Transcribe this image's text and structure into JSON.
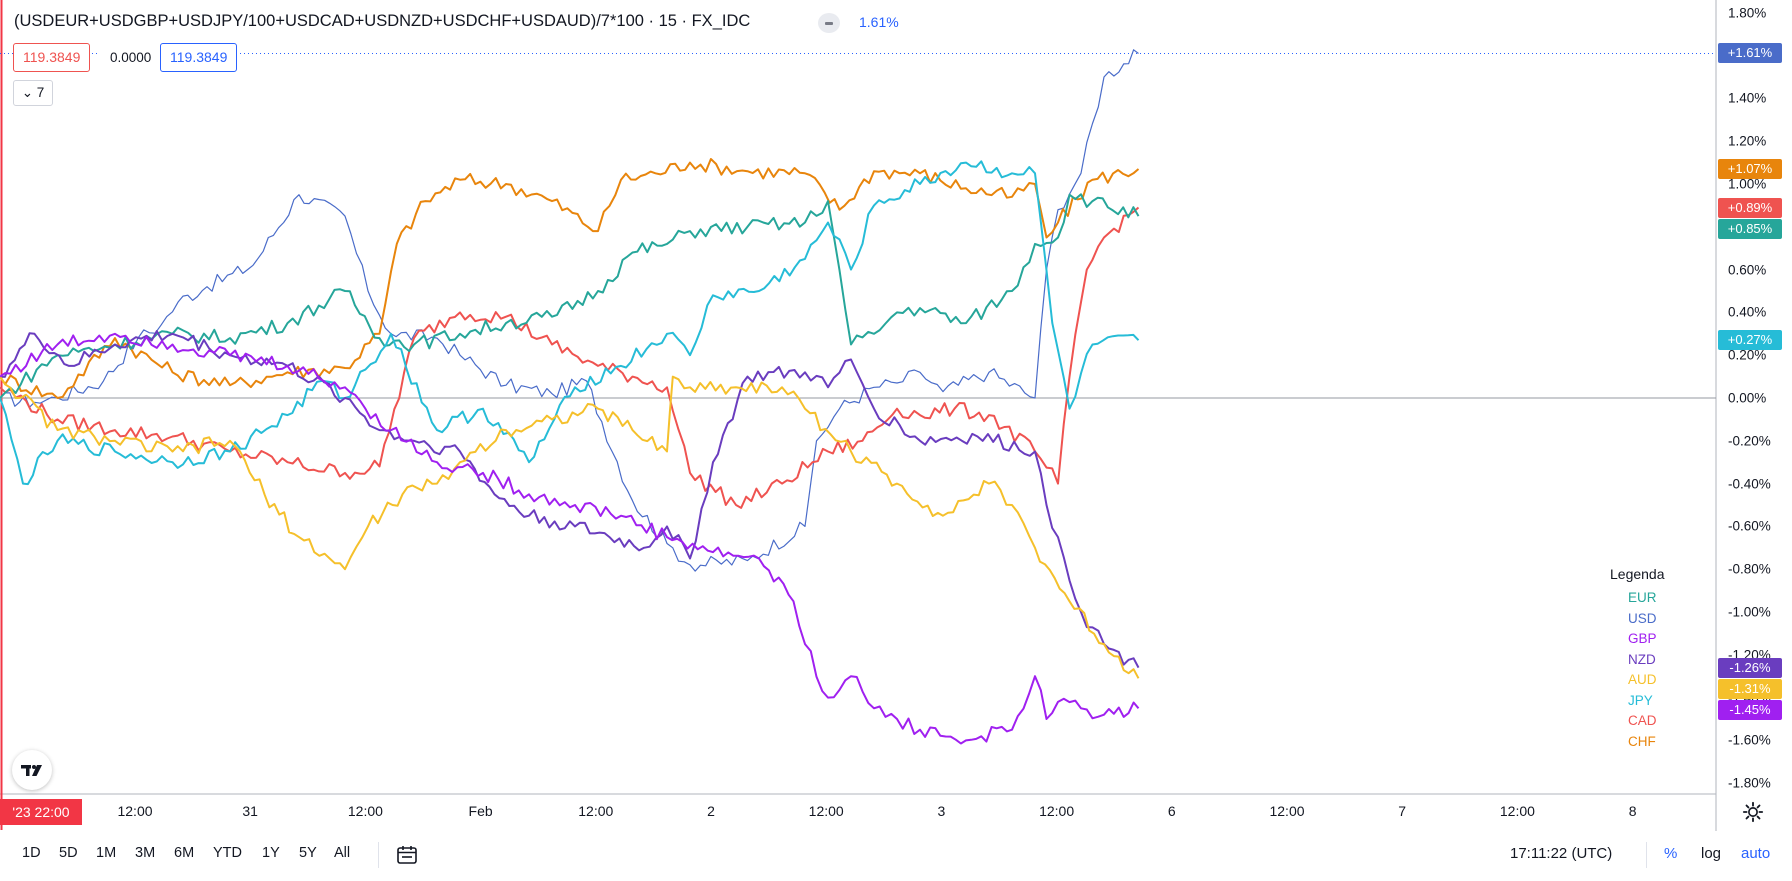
{
  "header": {
    "title": "(USDEUR+USDGBP+USDJPY/100+USDCAD+USDNZD+USDCHF+USDAUD)/7*100 · 15 · FX_IDC",
    "change": "1.61%",
    "ohlc_box1": "119.3849",
    "ohlc_box2": "0.0000",
    "ohlc_box3": "119.3849",
    "collapse_count": "7"
  },
  "legend": {
    "title": "Legenda",
    "items": [
      {
        "label": "EUR",
        "color": "#26a69a"
      },
      {
        "label": "USD",
        "color": "#4a6cc9"
      },
      {
        "label": "GBP",
        "color": "#a020f0"
      },
      {
        "label": "NZD",
        "color": "#6a3dbf"
      },
      {
        "label": "AUD",
        "color": "#f5c02b"
      },
      {
        "label": "JPY",
        "color": "#26bcd7"
      },
      {
        "label": "CAD",
        "color": "#ef5350"
      },
      {
        "label": "CHF",
        "color": "#e8850c"
      }
    ]
  },
  "xaxis": {
    "start_badge": "'23  22:00",
    "ticks": [
      "12:00",
      "31",
      "12:00",
      "Feb",
      "12:00",
      "2",
      "12:00",
      "3",
      "12:00",
      "6",
      "12:00",
      "7",
      "12:00",
      "8"
    ]
  },
  "toolbar": {
    "ranges": [
      "1D",
      "5D",
      "1M",
      "3M",
      "6M",
      "YTD",
      "1Y",
      "5Y",
      "All"
    ],
    "time": "17:11:22 (UTC)",
    "pct_label": "%",
    "log_label": "log",
    "auto_label": "auto"
  },
  "chart_data": {
    "type": "line",
    "yunit": "%",
    "ylim": [
      -1.8,
      1.8
    ],
    "yticks": [
      "1.80%",
      "1.60%",
      "1.40%",
      "1.20%",
      "1.00%",
      "0.80%",
      "0.60%",
      "0.40%",
      "0.20%",
      "0.00%",
      "-0.20%",
      "-0.40%",
      "-0.60%",
      "-0.80%",
      "-1.00%",
      "-1.20%",
      "-1.40%",
      "-1.60%",
      "-1.80%"
    ],
    "x_categories": [
      "'23 22:00",
      "12:00",
      "31",
      "12:00",
      "Feb",
      "12:00",
      "2",
      "12:00",
      "3",
      "12:00",
      "6"
    ],
    "grid": false,
    "legend_position": "bottom-right",
    "series": [
      {
        "name": "USD",
        "color": "#4a6cc9",
        "width": 1.2,
        "last_label": "+1.61%",
        "x": [
          0,
          0.3,
          0.5,
          0.9,
          1.2,
          1.4,
          1.55,
          1.8,
          2.2,
          2.6,
          3.0,
          3.2,
          3.4,
          3.8,
          4.0,
          4.4,
          4.8,
          5.1,
          5.5,
          5.8,
          6.0,
          6.5,
          7.0,
          7.1,
          7.3,
          7.6,
          7.8,
          8.0,
          8.2,
          8.6,
          9.0,
          9.1,
          9.2,
          9.4,
          9.6,
          9.9
        ],
        "values": [
          0.0,
          -0.02,
          0.0,
          0.08,
          0.28,
          0.34,
          0.45,
          0.52,
          0.62,
          0.95,
          0.85,
          0.5,
          0.3,
          0.28,
          0.2,
          0.06,
          0.02,
          0.08,
          -0.48,
          -0.68,
          -0.78,
          -0.76,
          -0.6,
          -0.2,
          -0.05,
          0.05,
          0.07,
          0.12,
          0.03,
          0.12,
          0.0,
          0.6,
          0.88,
          1.05,
          1.5,
          1.61
        ],
        "labels": [
          "",
          "",
          "",
          "",
          "",
          "",
          "",
          "",
          "",
          "",
          "",
          "",
          "",
          "",
          "",
          "",
          "",
          "",
          "",
          "",
          "",
          "",
          "",
          "",
          "",
          "",
          "",
          "",
          "",
          "",
          "",
          "",
          "",
          "",
          "",
          "+1.61%"
        ]
      },
      {
        "name": "CHF",
        "color": "#e8850c",
        "width": 2,
        "last_label": "+1.07%",
        "x": [
          0,
          0.5,
          1.0,
          1.5,
          2.0,
          2.5,
          3.0,
          3.3,
          3.45,
          3.7,
          4.0,
          4.4,
          4.8,
          5.2,
          5.4,
          5.7,
          6.0,
          6.5,
          7.0,
          7.3,
          7.6,
          8.0,
          8.4,
          8.8,
          9.0,
          9.1,
          9.2,
          9.5,
          9.9
        ],
        "values": [
          0.1,
          0.0,
          0.28,
          0.12,
          0.06,
          0.12,
          0.14,
          0.3,
          0.72,
          0.92,
          1.02,
          1.0,
          0.92,
          0.78,
          1.02,
          1.05,
          1.1,
          1.06,
          1.05,
          0.88,
          1.06,
          1.05,
          0.98,
          0.94,
          1.0,
          0.75,
          0.82,
          1.02,
          1.07
        ]
      },
      {
        "name": "CAD",
        "color": "#ef5350",
        "width": 2,
        "last_label": "+0.89%",
        "x": [
          0,
          0.5,
          1.0,
          1.5,
          2.0,
          2.5,
          3.0,
          3.3,
          3.6,
          4.0,
          4.4,
          4.8,
          5.2,
          5.5,
          5.8,
          6.0,
          6.4,
          6.8,
          7.2,
          7.5,
          7.8,
          8.0,
          8.3,
          8.6,
          9.0,
          9.2,
          9.3,
          9.45,
          9.6,
          9.9
        ],
        "values": [
          0.05,
          -0.1,
          -0.15,
          -0.18,
          -0.25,
          -0.3,
          -0.35,
          -0.32,
          0.28,
          0.4,
          0.38,
          0.25,
          0.15,
          0.1,
          0.05,
          -0.35,
          -0.5,
          -0.4,
          -0.25,
          -0.2,
          -0.05,
          -0.08,
          -0.05,
          -0.08,
          -0.25,
          -0.4,
          0.1,
          0.6,
          0.75,
          0.89
        ]
      },
      {
        "name": "EUR",
        "color": "#26a69a",
        "width": 2,
        "last_label": "+0.85%",
        "x": [
          0,
          0.5,
          1.0,
          1.5,
          2.0,
          2.5,
          3.0,
          3.3,
          3.6,
          4.0,
          4.4,
          4.8,
          5.2,
          5.5,
          5.8,
          6.0,
          6.5,
          7.0,
          7.2,
          7.4,
          7.6,
          7.8,
          8.0,
          8.4,
          8.8,
          9.0,
          9.2,
          9.3,
          9.5,
          9.9
        ],
        "values": [
          0.0,
          0.2,
          0.25,
          0.3,
          0.28,
          0.35,
          0.5,
          0.28,
          0.25,
          0.3,
          0.35,
          0.38,
          0.5,
          0.68,
          0.72,
          0.78,
          0.8,
          0.82,
          0.92,
          0.25,
          0.3,
          0.4,
          0.42,
          0.35,
          0.5,
          0.72,
          0.75,
          0.95,
          0.92,
          0.85
        ]
      },
      {
        "name": "JPY",
        "color": "#26bcd7",
        "width": 2,
        "last_label": "+0.27%",
        "x": [
          0,
          0.2,
          0.5,
          1.0,
          1.5,
          2.0,
          2.5,
          2.8,
          3.0,
          3.4,
          3.8,
          4.2,
          4.6,
          5.0,
          5.4,
          5.8,
          6.0,
          6.2,
          6.6,
          7.0,
          7.2,
          7.4,
          7.6,
          8.0,
          8.4,
          8.8,
          9.0,
          9.15,
          9.3,
          9.5,
          9.9
        ],
        "values": [
          0.0,
          -0.4,
          -0.2,
          -0.25,
          -0.3,
          -0.25,
          -0.08,
          0.08,
          0.0,
          0.3,
          -0.15,
          -0.05,
          -0.3,
          0.05,
          0.15,
          0.3,
          0.2,
          0.48,
          0.5,
          0.65,
          0.82,
          0.6,
          0.9,
          1.0,
          1.1,
          1.05,
          1.05,
          0.35,
          -0.05,
          0.25,
          0.27
        ]
      },
      {
        "name": "NZD",
        "color": "#6a3dbf",
        "width": 2,
        "last_label": "-1.26%",
        "x": [
          0,
          0.3,
          0.6,
          1.0,
          1.5,
          2.0,
          2.5,
          3.0,
          3.3,
          3.6,
          4.0,
          4.3,
          4.6,
          5.0,
          5.3,
          5.6,
          5.8,
          6.0,
          6.2,
          6.5,
          7.0,
          7.2,
          7.4,
          7.6,
          8.0,
          8.5,
          9.0,
          9.1,
          9.2,
          9.4,
          9.6,
          9.9
        ],
        "values": [
          0.1,
          0.3,
          0.15,
          0.25,
          0.3,
          0.2,
          0.15,
          0.0,
          -0.15,
          -0.2,
          -0.25,
          -0.45,
          -0.55,
          -0.6,
          -0.65,
          -0.7,
          -0.6,
          -0.75,
          -0.3,
          0.1,
          0.12,
          0.05,
          0.18,
          -0.05,
          -0.2,
          -0.18,
          -0.25,
          -0.5,
          -0.65,
          -1.0,
          -1.15,
          -1.26
        ]
      },
      {
        "name": "AUD",
        "color": "#f5c02b",
        "width": 2,
        "last_label": "-1.31%",
        "x": [
          0,
          0.5,
          1.0,
          1.5,
          2.0,
          2.3,
          2.6,
          3.0,
          3.2,
          3.5,
          3.8,
          4.0,
          4.4,
          4.8,
          5.2,
          5.5,
          5.8,
          5.85,
          6.0,
          6.4,
          6.8,
          7.0,
          7.4,
          7.8,
          8.2,
          8.6,
          8.8,
          9.0,
          9.3,
          9.6,
          9.9
        ],
        "values": [
          0.1,
          -0.15,
          -0.2,
          -0.25,
          -0.2,
          -0.45,
          -0.65,
          -0.8,
          -0.6,
          -0.45,
          -0.4,
          -0.3,
          -0.15,
          -0.1,
          -0.05,
          -0.15,
          -0.25,
          0.1,
          0.05,
          0.05,
          0.05,
          -0.05,
          -0.25,
          -0.4,
          -0.55,
          -0.4,
          -0.5,
          -0.7,
          -0.95,
          -1.15,
          -1.31
        ]
      },
      {
        "name": "GBP",
        "color": "#a020f0",
        "width": 2,
        "last_label": "-1.45%",
        "x": [
          0,
          0.5,
          1.0,
          1.5,
          2.0,
          2.5,
          3.0,
          3.4,
          3.8,
          4.2,
          4.6,
          5.0,
          5.4,
          5.8,
          6.2,
          6.6,
          6.9,
          7.0,
          7.2,
          7.4,
          7.6,
          7.8,
          8.0,
          8.4,
          8.8,
          9.0,
          9.1,
          9.2,
          9.4,
          9.6,
          9.9
        ],
        "values": [
          0.1,
          0.25,
          0.3,
          0.25,
          0.2,
          0.15,
          0.05,
          -0.15,
          -0.3,
          -0.35,
          -0.45,
          -0.5,
          -0.55,
          -0.65,
          -0.72,
          -0.75,
          -0.95,
          -1.15,
          -1.4,
          -1.3,
          -1.45,
          -1.5,
          -1.55,
          -1.6,
          -1.55,
          -1.3,
          -1.5,
          -1.42,
          -1.45,
          -1.48,
          -1.45
        ]
      }
    ]
  }
}
